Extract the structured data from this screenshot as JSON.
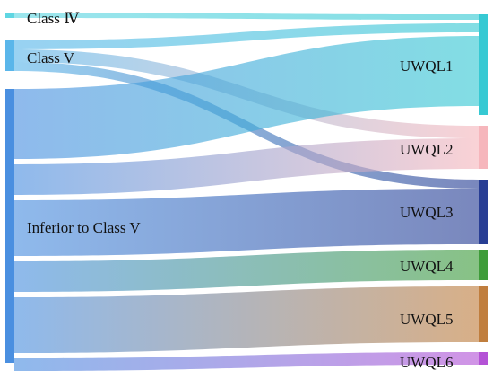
{
  "chart_data": {
    "type": "sankey",
    "sources": [
      {
        "id": "c4",
        "label": "Class Ⅳ",
        "color": "#5fd6e2"
      },
      {
        "id": "c5",
        "label": "Class V",
        "color": "#5ab6ea"
      },
      {
        "id": "inf",
        "label": "Inferior to Class V",
        "color": "#4a8fe0"
      }
    ],
    "targets": [
      {
        "id": "u1",
        "label": "UWQL1",
        "color": "#36c9d3"
      },
      {
        "id": "u2",
        "label": "UWQL2",
        "color": "#f6b6bc"
      },
      {
        "id": "u3",
        "label": "UWQL3",
        "color": "#283e94"
      },
      {
        "id": "u4",
        "label": "UWQL4",
        "color": "#3f9c3a"
      },
      {
        "id": "u5",
        "label": "UWQL5",
        "color": "#c07e3e"
      },
      {
        "id": "u6",
        "label": "UWQL6",
        "color": "#b452d6"
      }
    ],
    "links": [
      {
        "source": "c4",
        "target": "u1",
        "value": 6
      },
      {
        "source": "c5",
        "target": "u1",
        "value": 10
      },
      {
        "source": "c5",
        "target": "u2",
        "value": 14
      },
      {
        "source": "c5",
        "target": "u3",
        "value": 10
      },
      {
        "source": "inf",
        "target": "u1",
        "value": 78
      },
      {
        "source": "inf",
        "target": "u2",
        "value": 34
      },
      {
        "source": "inf",
        "target": "u3",
        "value": 62
      },
      {
        "source": "inf",
        "target": "u4",
        "value": 34
      },
      {
        "source": "inf",
        "target": "u5",
        "value": 62
      },
      {
        "source": "inf",
        "target": "u6",
        "value": 14
      }
    ]
  }
}
